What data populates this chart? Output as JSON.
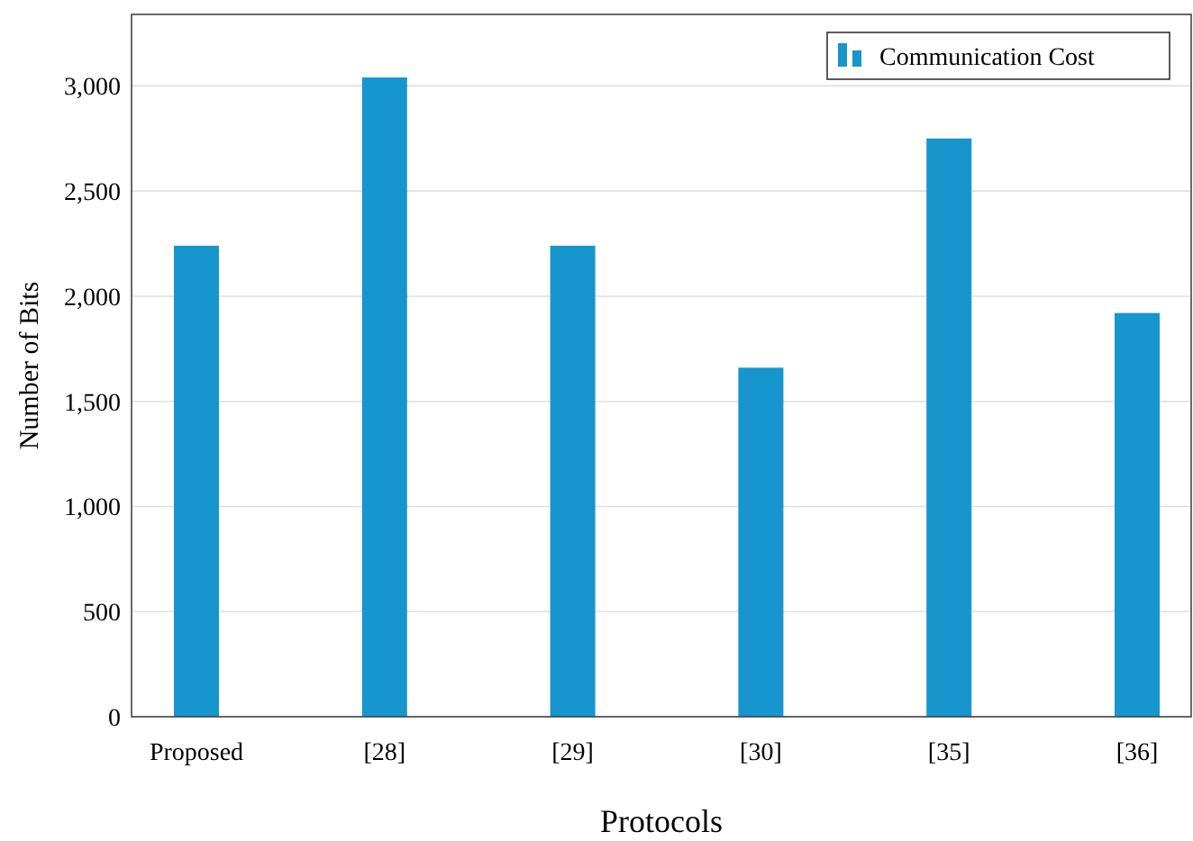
{
  "chart_data": {
    "type": "bar",
    "xlabel": "Protocols",
    "ylabel": "Number of Bits",
    "categories": [
      "Proposed",
      "[28]",
      "[29]",
      "[30]",
      "[35]",
      "[36]"
    ],
    "series": [
      {
        "name": "Communication Cost",
        "color": "#1696cc",
        "values": [
          2240,
          3040,
          2240,
          1660,
          2750,
          1920
        ]
      }
    ],
    "ylim": [
      0,
      3340
    ],
    "yticks": [
      0,
      {
        "value": 500,
        "label": "500"
      },
      {
        "value": 1000,
        "label": "1,000"
      },
      {
        "value": 1500,
        "label": "1,500"
      },
      {
        "value": 2000,
        "label": "2,000"
      },
      {
        "value": 2500,
        "label": "2,500"
      },
      {
        "value": 3000,
        "label": "3,000"
      }
    ],
    "grid": "y",
    "legend": "top right"
  }
}
